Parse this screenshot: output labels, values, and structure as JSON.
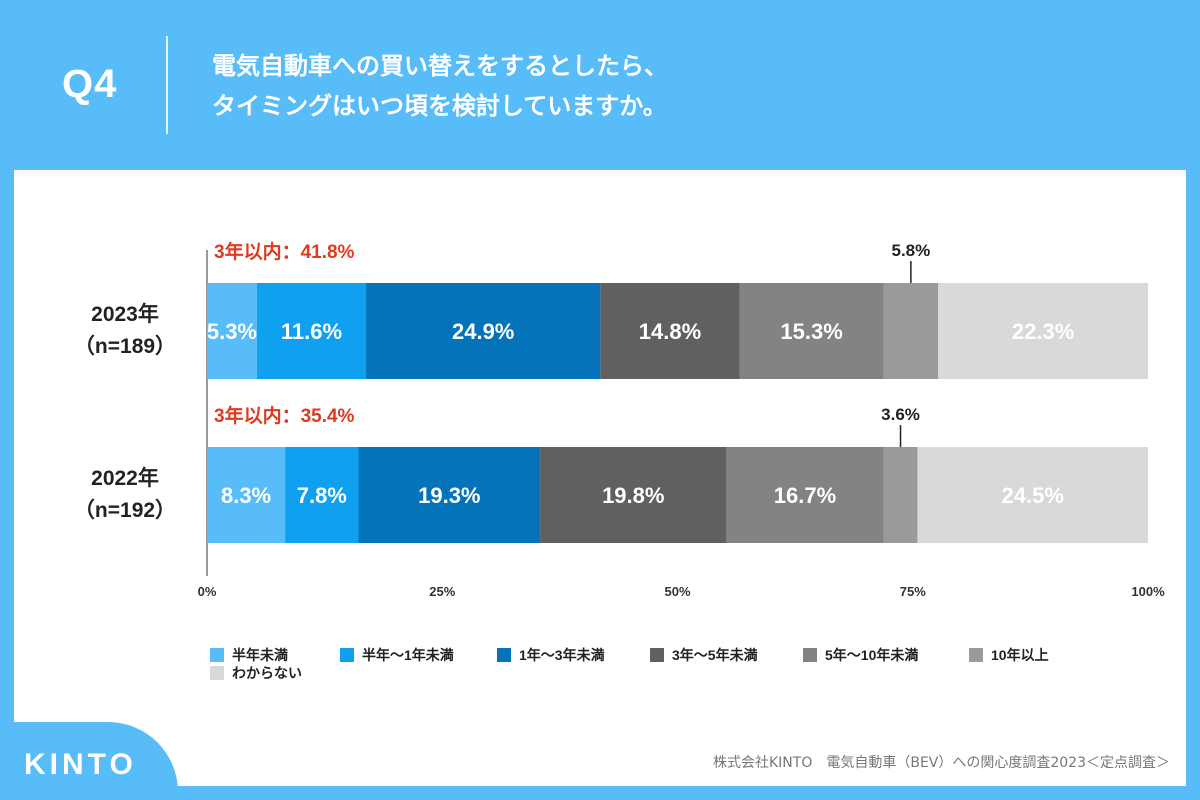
{
  "header": {
    "question": "Q4",
    "title_line1": "電気自動車への買い替えをするとしたら、",
    "title_line2": "タイミングはいつ頃を検討していますか。"
  },
  "chart_data": {
    "type": "bar",
    "orientation": "horizontal",
    "stacked": true,
    "percent": true,
    "xlim": [
      0,
      100
    ],
    "x_ticks": [
      "0%",
      "25%",
      "50%",
      "75%",
      "100%"
    ],
    "rows": [
      {
        "label_year": "2023年",
        "label_n": "（n=189）",
        "annotation": "3年以内：41.8%",
        "callout": "5.8%",
        "values": [
          5.3,
          11.6,
          24.9,
          14.8,
          15.3,
          5.8,
          22.3
        ],
        "labels": [
          "5.3%",
          "11.6%",
          "24.9%",
          "14.8%",
          "15.3%",
          "",
          "22.3%"
        ]
      },
      {
        "label_year": "2022年",
        "label_n": "（n=192）",
        "annotation": "3年以内：35.4%",
        "callout": "3.6%",
        "values": [
          8.3,
          7.8,
          19.3,
          19.8,
          16.7,
          3.6,
          24.5
        ],
        "labels": [
          "8.3%",
          "7.8%",
          "19.3%",
          "19.8%",
          "16.7%",
          "",
          "24.5%"
        ]
      }
    ],
    "series": [
      {
        "name": "半年未満",
        "color": "#58bcf8"
      },
      {
        "name": "半年〜1年未満",
        "color": "#0fa0f0"
      },
      {
        "name": "1年〜3年未満",
        "color": "#0473b9"
      },
      {
        "name": "3年〜5年未満",
        "color": "#606060"
      },
      {
        "name": "5年〜10年未満",
        "color": "#838383"
      },
      {
        "name": "10年以上",
        "color": "#9a9a9a"
      },
      {
        "name": "わからない",
        "color": "#d9d9d9"
      }
    ],
    "annotation_color": "#e03a1e"
  },
  "footer": {
    "brand": "KINTO",
    "source": "株式会社KINTO　電気自動車（BEV）への関心度調査2023＜定点調査＞"
  }
}
